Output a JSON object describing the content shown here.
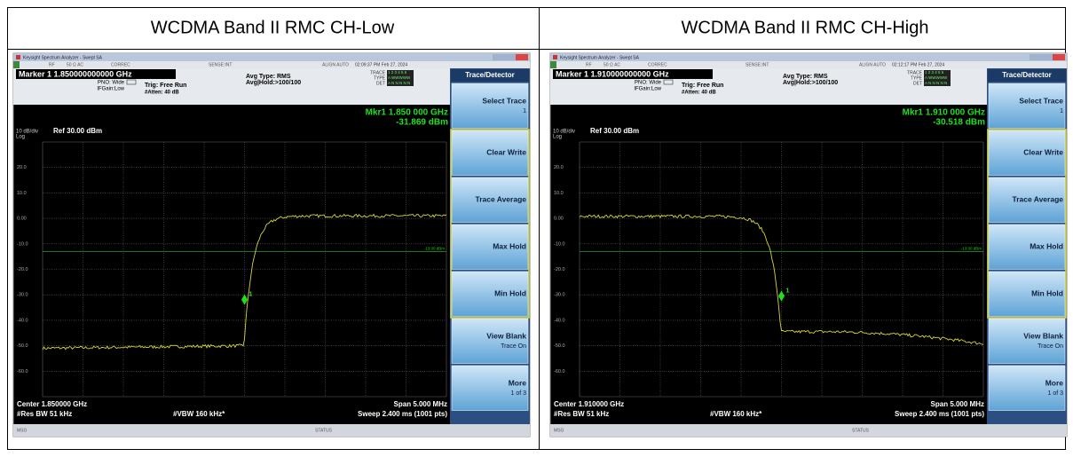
{
  "panels": [
    {
      "title": "WCDMA Band II RMC CH-Low",
      "screen": {
        "window_title": "Keysight Spectrum Analyzer - Swept SA",
        "rf": "RF",
        "coupling": "50 Ω  AC",
        "correc": "CORREC",
        "sense": "SENSE:INT",
        "align": "ALIGN AUTO",
        "timestamp": "02:09:37 PM Feb 27, 2024",
        "marker": "Marker 1 1.850000000000 GHz",
        "pno": "PNO: Wide",
        "ifgain": "IFGain:Low",
        "trig": "Trig: Free Run",
        "atten": "#Atten: 40 dB",
        "avg_type": "Avg Type: RMS",
        "avg_hold": "Avg|Hold:>100/100",
        "trace_row": "TRACE",
        "trace_digits": "1 2 3 4 5 6",
        "type_row": "TYPE",
        "type_digits": "A WWWWW",
        "det_row": "DET",
        "det_digits": "A N N N N N",
        "mkr_freq": "Mkr1 1.850 000 GHz",
        "mkr_level": "-31.869 dBm",
        "scale": "10 dB/div",
        "log": "Log",
        "ref": "Ref 30.00 dBm",
        "y_labels": [
          "20.0",
          "10.0",
          "0.00",
          "-10.0",
          "-20.0",
          "-30.0",
          "-40.0",
          "-50.0",
          "-60.0"
        ],
        "limit_label": "-13.00 dBm",
        "marker_label": "1",
        "center": "Center 1.850000 GHz",
        "res_bw": "#Res BW 51 kHz",
        "vbw": "#VBW 160 kHz*",
        "span": "Span 5.000 MHz",
        "sweep": "Sweep  2.400 ms (1001 pts)",
        "msg": "MSG",
        "status": "STATUS"
      },
      "softkeys": {
        "header": "Trace/Detector",
        "keys": [
          [
            "Select Trace",
            "1"
          ],
          [
            "Clear Write"
          ],
          [
            "Trace Average"
          ],
          [
            "Max Hold"
          ],
          [
            "Min Hold"
          ],
          [
            "View Blank",
            "Trace On"
          ],
          [
            "More",
            "1 of 3"
          ]
        ]
      }
    },
    {
      "title": "WCDMA Band II RMC CH-High",
      "screen": {
        "window_title": "Keysight Spectrum Analyzer - Swept SA",
        "rf": "RF",
        "coupling": "50 Ω  AC",
        "correc": "CORREC",
        "sense": "SENSE:INT",
        "align": "ALIGN AUTO",
        "timestamp": "02:12:17 PM Feb 27, 2024",
        "marker": "Marker 1 1.910000000000 GHz",
        "pno": "PNO: Wide",
        "ifgain": "IFGain:Low",
        "trig": "Trig: Free Run",
        "atten": "#Atten: 40 dB",
        "avg_type": "Avg Type: RMS",
        "avg_hold": "Avg|Hold:>100/100",
        "trace_row": "TRACE",
        "trace_digits": "1 2 3 4 5 6",
        "type_row": "TYPE",
        "type_digits": "A WWWWW",
        "det_row": "DET",
        "det_digits": "A N N N N N",
        "mkr_freq": "Mkr1 1.910 000 GHz",
        "mkr_level": "-30.518 dBm",
        "scale": "10 dB/div",
        "log": "Log",
        "ref": "Ref 30.00 dBm",
        "y_labels": [
          "20.0",
          "10.0",
          "0.00",
          "-10.0",
          "-20.0",
          "-30.0",
          "-40.0",
          "-50.0",
          "-60.0"
        ],
        "limit_label": "-13.00 dBm",
        "marker_label": "1",
        "center": "Center 1.910000 GHz",
        "res_bw": "#Res BW 51 kHz",
        "vbw": "#VBW 160 kHz*",
        "span": "Span 5.000 MHz",
        "sweep": "Sweep  2.400 ms (1001 pts)",
        "msg": "MSG",
        "status": "STATUS"
      },
      "softkeys": {
        "header": "Trace/Detector",
        "keys": [
          [
            "Select Trace",
            "1"
          ],
          [
            "Clear Write"
          ],
          [
            "Trace Average"
          ],
          [
            "Max Hold"
          ],
          [
            "Min Hold"
          ],
          [
            "View Blank",
            "Trace On"
          ],
          [
            "More",
            "1 of 3"
          ]
        ]
      }
    }
  ]
}
